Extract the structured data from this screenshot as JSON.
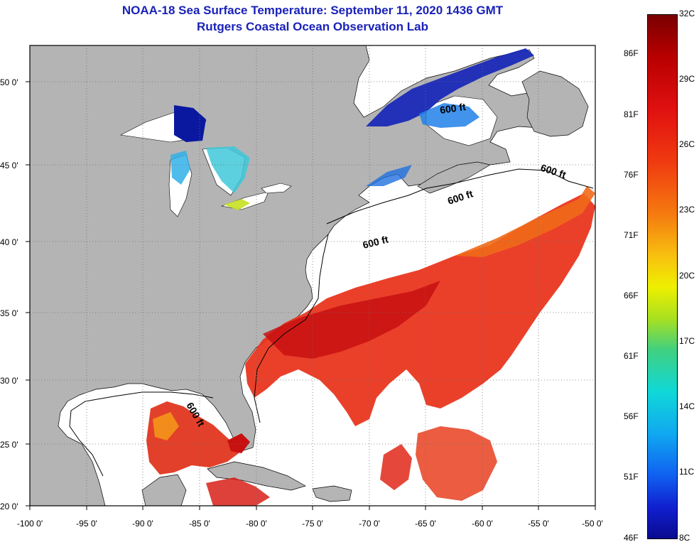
{
  "header": {
    "title": "NOAA-18 Sea Surface Temperature:  September 11, 2020 1436 GMT",
    "subtitle": "Rutgers Coastal Ocean Observation Lab"
  },
  "map": {
    "lat_labels": [
      "50 0'",
      "45 0'",
      "40 0'",
      "35 0'",
      "30 0'",
      "25 0'",
      "20 0'"
    ],
    "lon_labels": [
      "-100 0'",
      "-95 0'",
      "-90 0'",
      "-85 0'",
      "-80 0'",
      "-75 0'",
      "-70 0'",
      "-65 0'",
      "-60 0'",
      "-55 0'",
      "-50 0'"
    ],
    "contour_labels": [
      "600 ft",
      "600 ft",
      "600 ft",
      "600 ft",
      "600 ft"
    ],
    "colors": {
      "land": "#b4b4b4",
      "ocean_no_data": "#ffffff",
      "grid": "#808080"
    }
  },
  "colorbar": {
    "celsius_labels": [
      "32C",
      "29C",
      "26C",
      "23C",
      "20C",
      "17C",
      "14C",
      "11C",
      "8C"
    ],
    "fahrenheit_labels": [
      "86F",
      "81F",
      "76F",
      "71F",
      "66F",
      "61F",
      "56F",
      "51F",
      "46F"
    ]
  }
}
